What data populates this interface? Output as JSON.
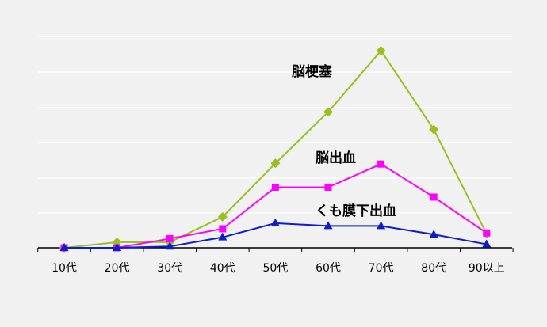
{
  "chart_data": {
    "type": "line",
    "categories": [
      "10代",
      "20代",
      "30代",
      "40代",
      "50代",
      "60代",
      "70代",
      "80代",
      "90以上"
    ],
    "ylim": [
      0,
      280
    ],
    "grid": true,
    "series": [
      {
        "name": "脳梗塞",
        "color": "#99c01e",
        "marker": "diamond",
        "values": [
          0,
          8,
          8,
          44,
          120,
          193,
          280,
          168,
          20
        ]
      },
      {
        "name": "脳出血",
        "color": "#ff00ff",
        "marker": "square",
        "values": [
          0,
          0,
          13,
          27,
          86,
          86,
          119,
          72,
          21
        ]
      },
      {
        "name": "くも膜下出血",
        "color": "#0c1fc6",
        "marker": "triangle",
        "values": [
          0,
          0,
          2,
          15,
          35,
          31,
          31,
          19,
          5
        ]
      }
    ]
  }
}
